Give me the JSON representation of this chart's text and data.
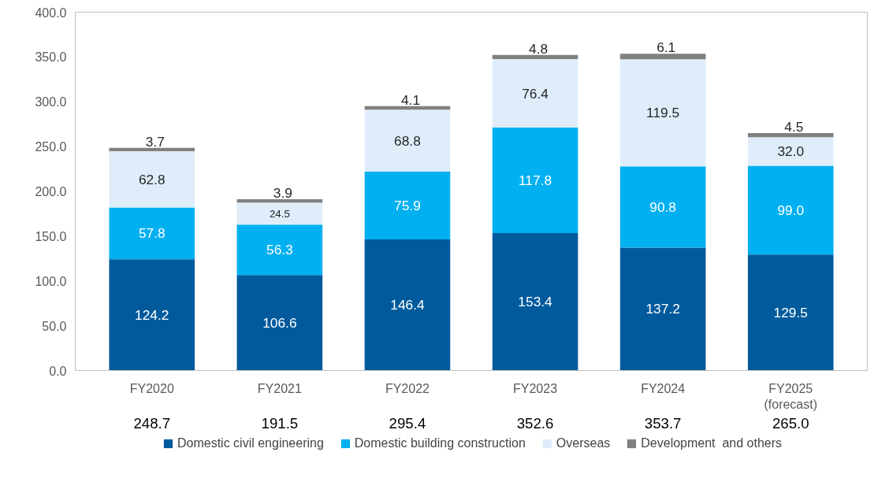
{
  "chart_data": {
    "type": "bar",
    "stacked": true,
    "categories": [
      "FY2020",
      "FY2021",
      "FY2022",
      "FY2023",
      "FY2024",
      "FY2025\n(forecast)"
    ],
    "series": [
      {
        "name": "Domestic civil engineering",
        "color": "#005a9c",
        "values": [
          124.2,
          106.6,
          146.4,
          153.4,
          137.2,
          129.5
        ],
        "value_labels": [
          "124.2",
          "106.6",
          "146.4",
          "153.4",
          "137.2",
          "129.5"
        ]
      },
      {
        "name": "Domestic building construction",
        "color": "#00b0f0",
        "values": [
          57.8,
          56.3,
          75.9,
          117.8,
          90.8,
          99.0
        ],
        "value_labels": [
          "57.8",
          "56.3",
          "75.9",
          "117.8",
          "90.8",
          "99.0"
        ]
      },
      {
        "name": "Overseas",
        "color": "#deedf9",
        "values": [
          62.8,
          24.5,
          68.8,
          76.4,
          119.5,
          32.0
        ],
        "value_labels": [
          "62.8",
          "24.5",
          "68.8",
          "76.4",
          "119.5",
          "32.0"
        ]
      },
      {
        "name": "Development  and others",
        "color": "#808080",
        "values": [
          3.7,
          3.9,
          4.1,
          4.8,
          6.1,
          4.5
        ],
        "value_labels": [
          "3.7",
          "3.9",
          "4.1",
          "4.8",
          "6.1",
          "4.5"
        ]
      }
    ],
    "totals": [
      "248.7",
      "191.5",
      "295.4",
      "352.6",
      "353.7",
      "265.0"
    ],
    "ylim": [
      0,
      400
    ],
    "yticks": [
      {
        "value": 0,
        "label": "0.0"
      },
      {
        "value": 50,
        "label": "50.0"
      },
      {
        "value": 100,
        "label": "100.0"
      },
      {
        "value": 150,
        "label": "150.0"
      },
      {
        "value": 200,
        "label": "200.0"
      },
      {
        "value": 250,
        "label": "250.0"
      },
      {
        "value": 300,
        "label": "300.0"
      },
      {
        "value": 350,
        "label": "350.0"
      },
      {
        "value": 400,
        "label": "400.0"
      }
    ],
    "grid": false,
    "legend": "bottom"
  }
}
